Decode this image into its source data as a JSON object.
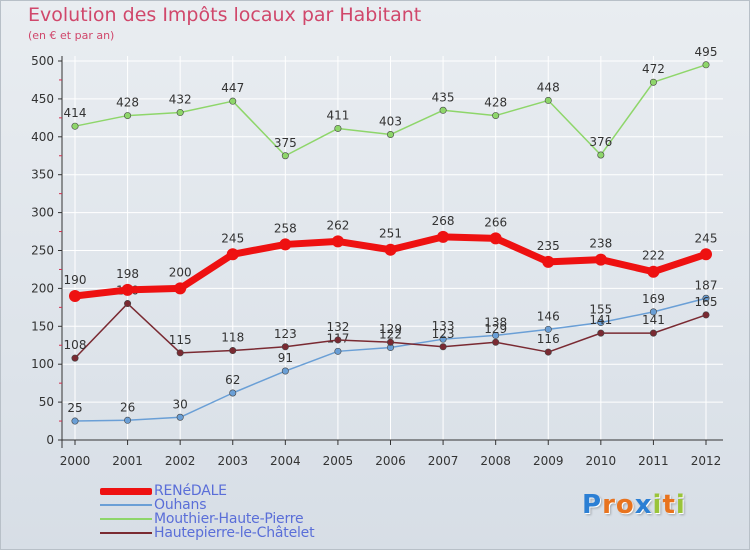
{
  "header": {
    "title": "Evolution des Impôts locaux par Habitant",
    "subtitle": "(en € et par an)"
  },
  "brand": {
    "letters": [
      "P",
      "r",
      "o",
      "x",
      "i",
      "t",
      "i"
    ],
    "colors": [
      "#2b7fd4",
      "#e8731e",
      "#e8731e",
      "#2b7fd4",
      "#9ac43a",
      "#e8731e",
      "#9ac43a"
    ]
  },
  "chart_data": {
    "type": "line",
    "x": [
      "2000",
      "2001",
      "2002",
      "2003",
      "2004",
      "2005",
      "2006",
      "2007",
      "2008",
      "2009",
      "2010",
      "2011",
      "2012"
    ],
    "ylim": [
      0,
      500
    ],
    "yticks": [
      "0",
      "50",
      "100",
      "150",
      "200",
      "250",
      "300",
      "350",
      "400",
      "450",
      "500"
    ],
    "grid": true,
    "legend_placement": "bottom-left",
    "series": [
      {
        "name": "Mouthier-Haute-Pierre",
        "color": "#8ed66a",
        "values": [
          414,
          428,
          432,
          447,
          375,
          411,
          403,
          435,
          428,
          448,
          376,
          472,
          495
        ],
        "labels": [
          "414",
          "428",
          "432",
          "447",
          "375",
          "411",
          "403",
          "435",
          "428",
          "448",
          "376",
          "472",
          "495"
        ]
      },
      {
        "name": "Ouhans",
        "color": "#6a9fd6",
        "values": [
          25,
          26,
          30,
          62,
          91,
          117,
          122,
          133,
          138,
          146,
          155,
          169,
          187
        ],
        "labels": [
          "25",
          "26",
          "30",
          "62",
          "91",
          "117",
          "122",
          "133",
          "138",
          "146",
          "155",
          "169",
          "187"
        ]
      },
      {
        "name": "Hautepierre-le-Châtelet",
        "color": "#7a2a32",
        "values": [
          108,
          180,
          115,
          118,
          123,
          132,
          129,
          123,
          129,
          116,
          141,
          141,
          165
        ],
        "labels": [
          "108",
          "180",
          "115",
          "118",
          "123",
          "132",
          "129",
          "123",
          "129",
          "116",
          "141",
          "141",
          "165"
        ]
      },
      {
        "name": "RENéDALE",
        "color": "#ee1111",
        "values": [
          190,
          198,
          200,
          245,
          258,
          262,
          251,
          268,
          266,
          235,
          238,
          222,
          245
        ],
        "labels": [
          "190",
          "198",
          "200",
          "245",
          "258",
          "262",
          "251",
          "268",
          "266",
          "235",
          "238",
          "222",
          "245"
        ]
      }
    ]
  },
  "legend": {
    "items": [
      {
        "label": "RENéDALE",
        "color": "#ee1111",
        "thickness": 7
      },
      {
        "label": "Ouhans",
        "color": "#6a9fd6",
        "thickness": 2
      },
      {
        "label": "Mouthier-Haute-Pierre",
        "color": "#8ed66a",
        "thickness": 2
      },
      {
        "label": "Hautepierre-le-Châtelet",
        "color": "#7a2a32",
        "thickness": 2
      }
    ]
  }
}
